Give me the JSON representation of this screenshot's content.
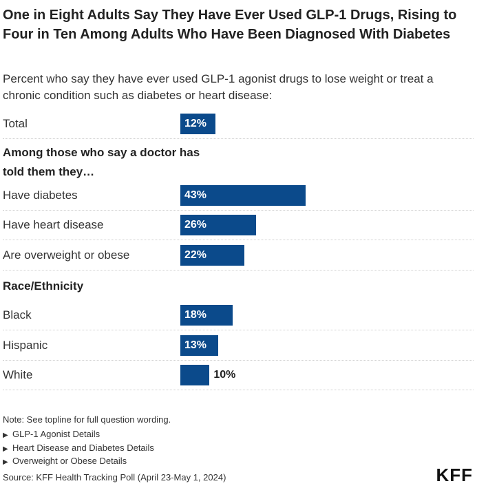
{
  "title": "One in Eight Adults Say They Have Ever Used GLP-1 Drugs, Rising to Four in Ten Among Adults Who Have Been Diagnosed With Diabetes",
  "subtitle": "Percent who say they have ever used GLP-1 agonist drugs to lose weight or treat a chronic condition such as diabetes or heart disease:",
  "sections": {
    "doctor": "Among those who say a doctor has told them they…",
    "race": "Race/Ethnicity"
  },
  "colors": {
    "bar": "#0b4a8b",
    "label_inside": "#ffffff",
    "label_outside": "#222222"
  },
  "chart_data": {
    "type": "bar",
    "orientation": "horizontal",
    "title": "One in Eight Adults Say They Have Ever Used GLP-1 Drugs, Rising to Four in Ten Among Adults Who Have Been Diagnosed With Diabetes",
    "xlim": [
      0,
      100
    ],
    "grid": false,
    "categories": [
      "Total",
      "Have diabetes",
      "Have heart disease",
      "Are overweight or obese",
      "Black",
      "Hispanic",
      "White"
    ],
    "values": [
      12,
      43,
      26,
      22,
      18,
      13,
      10
    ],
    "value_labels": [
      "12%",
      "43%",
      "26%",
      "22%",
      "18%",
      "13%",
      "10%"
    ],
    "groups": [
      {
        "heading": "",
        "categories": [
          "Total"
        ]
      },
      {
        "heading": "Among those who say a doctor has told them they…",
        "categories": [
          "Have diabetes",
          "Have heart disease",
          "Are overweight or obese"
        ]
      },
      {
        "heading": "Race/Ethnicity",
        "categories": [
          "Black",
          "Hispanic",
          "White"
        ]
      }
    ]
  },
  "footer": {
    "note": "Note: See topline for full question wording.",
    "details": [
      "GLP-1 Agonist Details",
      "Heart Disease and Diabetes Details",
      "Overweight or Obese Details"
    ],
    "source": "Source: KFF Health Tracking Poll (April 23-May 1, 2024)",
    "logo": "KFF"
  }
}
